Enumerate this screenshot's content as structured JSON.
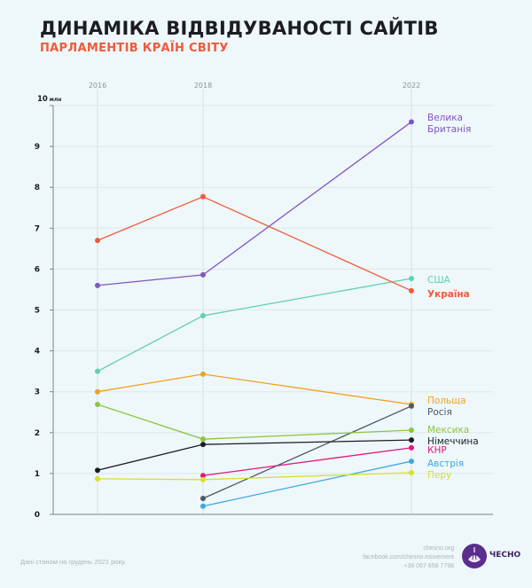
{
  "header": {
    "title": "ДИНАМІКА ВІДВІДУВАНОСТІ САЙТІВ",
    "subtitle": "ПАРЛАМЕНТІВ КРАЇН СВІТУ"
  },
  "chart_data": {
    "type": "line",
    "title": "ДИНАМІКА ВІДВІДУВАНОСТІ САЙТІВ",
    "subtitle": "ПАРЛАМЕНТІВ КРАЇН СВІТУ",
    "x": [
      2016,
      2018,
      2022
    ],
    "x_tick_labels": [
      "2016",
      "2018",
      "2022"
    ],
    "ylabel": "млн",
    "ylim": [
      0,
      10
    ],
    "y_ticks": [
      0,
      1,
      2,
      3,
      4,
      5,
      6,
      7,
      8,
      9,
      10
    ],
    "y_top_label": "10 млн",
    "grid": true,
    "legend": "right (labels at line ends)",
    "series": [
      {
        "name": "Велика Британія",
        "label_lines": [
          "Велика",
          "Британія"
        ],
        "color": "#7e57c2",
        "bold": false,
        "values": [
          5.6,
          5.86,
          9.6
        ]
      },
      {
        "name": "США",
        "label_lines": [
          "США"
        ],
        "color": "#5fd0b0",
        "bold": false,
        "values": [
          3.5,
          4.86,
          5.77
        ]
      },
      {
        "name": "Україна",
        "label_lines": [
          "Україна"
        ],
        "color": "#f05a3a",
        "bold": true,
        "values": [
          6.7,
          7.77,
          5.47
        ]
      },
      {
        "name": "Польща",
        "label_lines": [
          "Польща"
        ],
        "color": "#f0a020",
        "bold": false,
        "values": [
          3.0,
          3.43,
          2.69
        ]
      },
      {
        "name": "Росія",
        "label_lines": [
          "Росія"
        ],
        "color": "#4a5a68",
        "bold": false,
        "values": [
          null,
          0.39,
          2.65
        ]
      },
      {
        "name": "Мексика",
        "label_lines": [
          "Мексика"
        ],
        "color": "#8dc63f",
        "bold": false,
        "values": [
          2.69,
          1.84,
          2.06
        ]
      },
      {
        "name": "Німеччина",
        "label_lines": [
          "Німеччина"
        ],
        "color": "#1b1d22",
        "bold": false,
        "values": [
          1.08,
          1.71,
          1.82
        ]
      },
      {
        "name": "КНР",
        "label_lines": [
          "КНР"
        ],
        "color": "#e0197d",
        "bold": false,
        "values": [
          null,
          0.95,
          1.63
        ]
      },
      {
        "name": "Австрія",
        "label_lines": [
          "Австрія"
        ],
        "color": "#3ea8e0",
        "bold": false,
        "values": [
          null,
          0.2,
          1.3
        ]
      },
      {
        "name": "Перу",
        "label_lines": [
          "Перу"
        ],
        "color": "#d8e02a",
        "bold": false,
        "values": [
          0.87,
          0.85,
          1.02
        ]
      }
    ]
  },
  "footer": {
    "note": "Дані станом на грудень 2021 року.",
    "contacts": [
      "chesno.org",
      "facebook.com/chesno.movement",
      "+38 067 658 7798"
    ],
    "logo_text": "ЧЕСНО"
  }
}
